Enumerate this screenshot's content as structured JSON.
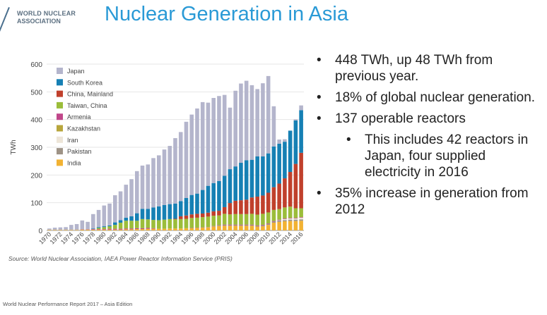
{
  "logo": {
    "line1": "WORLD NUCLEAR",
    "line2": "ASSOCIATION"
  },
  "title": "Nuclear Generation in Asia",
  "bullets": [
    {
      "text": "448 TWh, up 48 TWh from previous year.",
      "level": 1
    },
    {
      "text": "18% of global nuclear generation.",
      "level": 1
    },
    {
      "text": "137 operable reactors",
      "level": 1
    },
    {
      "text": "This includes 42 reactors in Japan, four supplied electricity in 2016",
      "level": 2
    },
    {
      "text": "35% increase in generation from 2012",
      "level": 1
    }
  ],
  "bullet_symbol": "•",
  "source": "Source: World Nuclear Association, IAEA Power Reactor Information Service (PRIS)",
  "footer": "World Nuclear Performance Report 2017 – Asia Edition",
  "chart_data": {
    "type": "bar",
    "stacked": true,
    "ylabel": "TWh",
    "xlabel": "",
    "ylim": [
      0,
      600
    ],
    "yticks": [
      0,
      100,
      200,
      300,
      400,
      500,
      600
    ],
    "legend_position": "top-left",
    "categories": [
      1970,
      1971,
      1972,
      1973,
      1974,
      1975,
      1976,
      1977,
      1978,
      1979,
      1980,
      1981,
      1982,
      1983,
      1984,
      1985,
      1986,
      1987,
      1988,
      1989,
      1990,
      1991,
      1992,
      1993,
      1994,
      1995,
      1996,
      1997,
      1998,
      1999,
      2000,
      2001,
      2002,
      2003,
      2004,
      2005,
      2006,
      2007,
      2008,
      2009,
      2010,
      2011,
      2012,
      2013,
      2014,
      2015,
      2016
    ],
    "xtick_labels": [
      "1970",
      "1972",
      "1974",
      "1976",
      "1978",
      "1980",
      "1982",
      "1984",
      "1986",
      "1988",
      "1990",
      "1992",
      "1994",
      "1996",
      "1998",
      "2000",
      "2002",
      "2004",
      "2006",
      "2008",
      "2010",
      "2012",
      "2014",
      "2016"
    ],
    "series": [
      {
        "name": "India",
        "color": "#f2b233",
        "values": [
          2,
          2,
          2,
          2,
          2,
          2,
          3,
          3,
          3,
          3,
          3,
          3,
          3,
          3,
          4,
          4,
          5,
          5,
          6,
          6,
          6,
          6,
          7,
          7,
          7,
          8,
          8,
          9,
          10,
          11,
          14,
          16,
          17,
          17,
          17,
          17,
          17,
          17,
          14,
          15,
          20,
          28,
          31,
          33,
          34,
          34,
          35
        ]
      },
      {
        "name": "Pakistan",
        "color": "#9e9386",
        "values": [
          0,
          0,
          0,
          0,
          0,
          0,
          0,
          0,
          0,
          0,
          0,
          0,
          0,
          0,
          0,
          0,
          0,
          0,
          0,
          0,
          0,
          0,
          0,
          0,
          0,
          0,
          0,
          0,
          0,
          0,
          1,
          2,
          2,
          2,
          2,
          2,
          2,
          2,
          2,
          3,
          3,
          4,
          5,
          4,
          5,
          5,
          5
        ]
      },
      {
        "name": "Iran",
        "color": "#ede5d8",
        "values": [
          0,
          0,
          0,
          0,
          0,
          0,
          0,
          0,
          0,
          0,
          0,
          0,
          0,
          0,
          0,
          0,
          0,
          0,
          0,
          0,
          0,
          0,
          0,
          0,
          0,
          0,
          0,
          0,
          0,
          0,
          0,
          0,
          0,
          0,
          0,
          0,
          0,
          0,
          0,
          0,
          0,
          0,
          1,
          4,
          4,
          4,
          6
        ]
      },
      {
        "name": "Kazakhstan",
        "color": "#b8a63c",
        "values": [
          0,
          0,
          0,
          0,
          0,
          0,
          0,
          0,
          0,
          0,
          0,
          0,
          0,
          0,
          0,
          0,
          0,
          0,
          0,
          0,
          0,
          0,
          0,
          0,
          0,
          0,
          0,
          0,
          0,
          0,
          0,
          0,
          0,
          0,
          0,
          0,
          0,
          0,
          0,
          0,
          0,
          0,
          0,
          0,
          0,
          0,
          0
        ]
      },
      {
        "name": "Armenia",
        "color": "#c0478a",
        "values": [
          0,
          0,
          0,
          0,
          0,
          0,
          1,
          1,
          2,
          2,
          2,
          3,
          3,
          3,
          3,
          3,
          3,
          3,
          3,
          2,
          0,
          0,
          0,
          0,
          0,
          0,
          1,
          1,
          1,
          1,
          1,
          1,
          2,
          2,
          2,
          2,
          2,
          2,
          2,
          2,
          2,
          2,
          2,
          2,
          2,
          2,
          2
        ]
      },
      {
        "name": "Taiwan, China",
        "color": "#9bbd3a",
        "values": [
          0,
          0,
          0,
          0,
          0,
          0,
          0,
          0,
          0,
          4,
          7,
          9,
          14,
          22,
          28,
          28,
          27,
          33,
          31,
          30,
          31,
          33,
          34,
          33,
          34,
          34,
          36,
          36,
          37,
          38,
          37,
          35,
          39,
          37,
          38,
          38,
          38,
          39,
          39,
          40,
          40,
          40,
          38,
          40,
          41,
          35,
          32
        ]
      },
      {
        "name": "China, Mainland",
        "color": "#c0402c",
        "values": [
          0,
          0,
          0,
          0,
          0,
          0,
          0,
          0,
          0,
          0,
          0,
          0,
          0,
          0,
          0,
          0,
          0,
          0,
          0,
          0,
          0,
          0,
          0,
          2,
          10,
          12,
          13,
          14,
          13,
          14,
          16,
          17,
          24,
          41,
          48,
          50,
          52,
          59,
          65,
          66,
          71,
          82,
          92,
          105,
          125,
          160,
          200
        ]
      },
      {
        "name": "South Korea",
        "color": "#1680b4",
        "values": [
          0,
          0,
          0,
          0,
          0,
          0,
          0,
          0,
          2,
          3,
          3,
          3,
          9,
          9,
          11,
          16,
          27,
          37,
          38,
          45,
          50,
          53,
          54,
          55,
          55,
          63,
          70,
          73,
          85,
          97,
          102,
          107,
          113,
          122,
          124,
          135,
          142,
          136,
          145,
          141,
          142,
          147,
          144,
          132,
          149,
          157,
          154
        ]
      },
      {
        "name": "Japan",
        "color": "#b4b5cc",
        "values": [
          5,
          8,
          9,
          10,
          18,
          21,
          32,
          27,
          52,
          62,
          75,
          79,
          98,
          104,
          119,
          134,
          152,
          156,
          160,
          178,
          184,
          200,
          210,
          236,
          249,
          275,
          290,
          307,
          317,
          300,
          307,
          307,
          292,
          222,
          273,
          286,
          287,
          269,
          243,
          264,
          279,
          145,
          15,
          9,
          0,
          4,
          17
        ]
      }
    ]
  }
}
